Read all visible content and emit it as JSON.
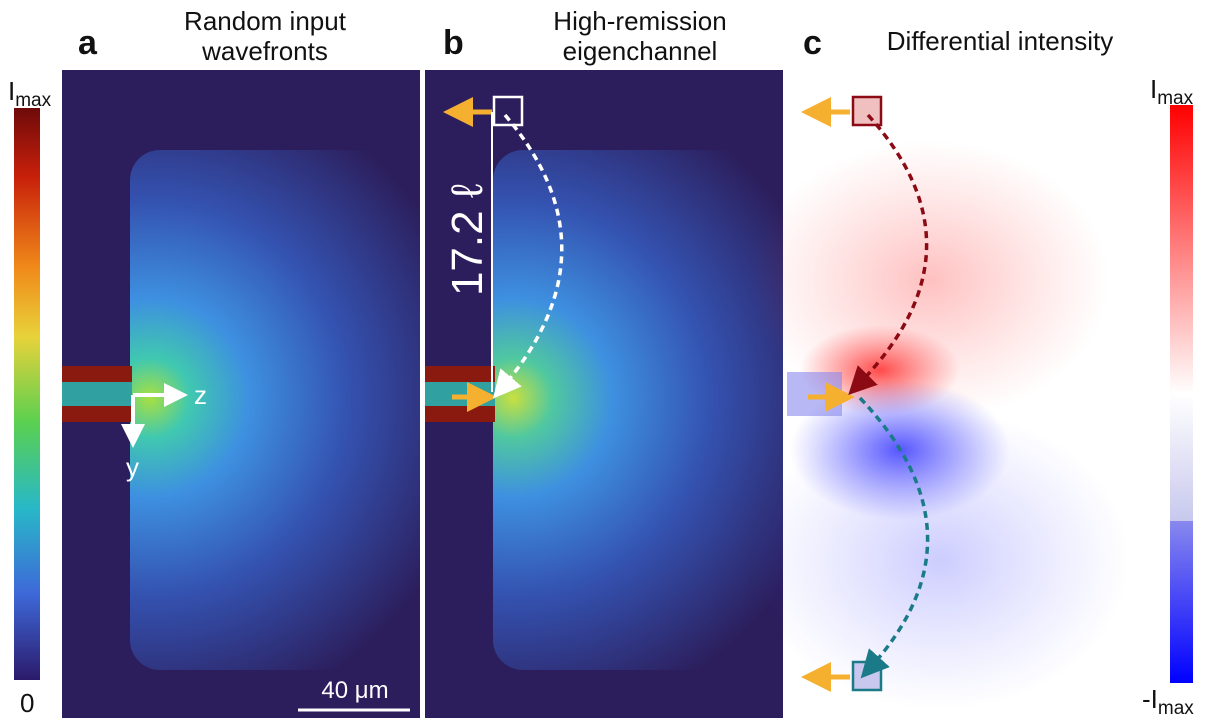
{
  "panels": [
    {
      "letter": "a",
      "title": [
        "Random input",
        "wavefronts"
      ]
    },
    {
      "letter": "b",
      "title": [
        "High-remission",
        "eigenchannel"
      ]
    },
    {
      "letter": "c",
      "title": [
        "Differential intensity"
      ]
    }
  ],
  "left_colorbar": {
    "top": {
      "main": "I",
      "sub": "max"
    },
    "bottom": "0"
  },
  "right_colorbar": {
    "top": {
      "main": "I",
      "sub": "max"
    },
    "bottom": {
      "main": "-I",
      "sub": "max"
    }
  },
  "axis_labels": {
    "z": "z",
    "y": "y"
  },
  "scale_bar": "40 μm",
  "distance_label": "17.2 ℓ"
}
